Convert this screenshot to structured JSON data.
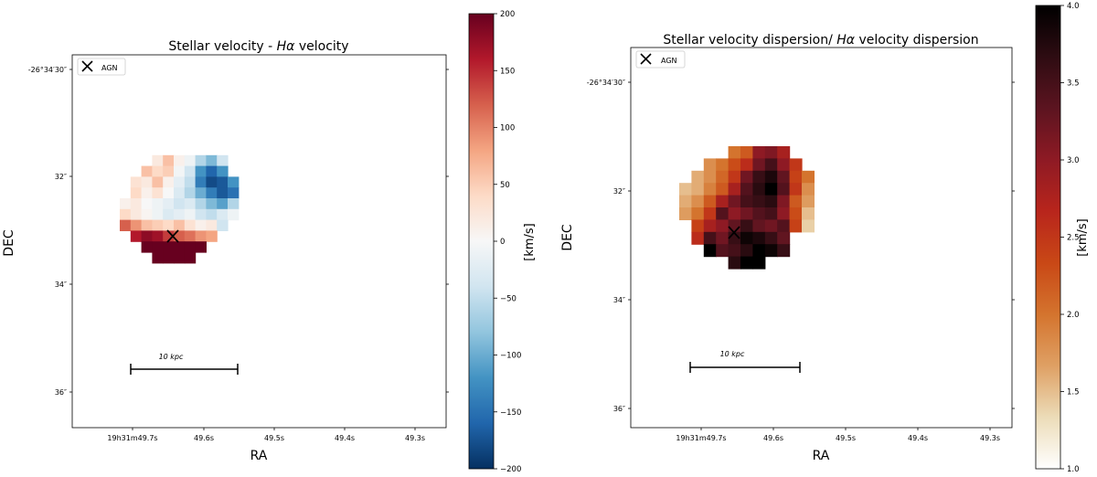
{
  "chart_data": [
    {
      "type": "heatmap",
      "title": "Stellar velocity - Hα velocity",
      "title_prefix": "Stellar velocity - ",
      "title_italic": "Hα",
      "title_suffix": " velocity",
      "xlabel": "RA",
      "ylabel": "DEC",
      "x_ticks": [
        "19h31m49.7s",
        "49.6s",
        "49.5s",
        "49.4s",
        "49.3s"
      ],
      "y_ticks": [
        "-26°34′30″",
        "32″",
        "34″",
        "36″"
      ],
      "legend": {
        "label": "AGN",
        "marker": "x-marker"
      },
      "agn_position": {
        "ra": "19h31m49.65s",
        "dec": "-26°34′33.1″"
      },
      "scalebar_label": "10 kpc",
      "colorbar": {
        "label": "[km/s]",
        "range": [
          -200,
          200
        ],
        "ticks": [
          200,
          150,
          100,
          50,
          0,
          -50,
          -100,
          -150,
          -200
        ],
        "colormap": "RdBu_r",
        "colors": [
          "#053061",
          "#2166ac",
          "#4393c3",
          "#92c5de",
          "#d1e5f0",
          "#f7f7f7",
          "#fddbc7",
          "#f4a582",
          "#d6604d",
          "#b2182b",
          "#67001f"
        ]
      },
      "description_grid_rows": [
        [
          null,
          null,
          null,
          null,
          null,
          null,
          null,
          null,
          null,
          null,
          null,
          null,
          null
        ],
        [
          null,
          null,
          null,
          20,
          60,
          10,
          -10,
          -60,
          -90,
          -40,
          null,
          null,
          null
        ],
        [
          null,
          null,
          60,
          40,
          50,
          -5,
          -40,
          -120,
          -160,
          -120,
          null,
          null,
          null
        ],
        [
          null,
          30,
          20,
          60,
          10,
          -20,
          -50,
          -140,
          -180,
          -170,
          -120,
          null,
          null
        ],
        [
          null,
          40,
          10,
          30,
          0,
          -30,
          -60,
          -100,
          -140,
          -170,
          -150,
          null,
          null
        ],
        [
          10,
          20,
          0,
          -10,
          -20,
          -40,
          -30,
          -60,
          -90,
          -110,
          -60,
          null,
          null
        ],
        [
          40,
          20,
          5,
          -10,
          -30,
          -20,
          -10,
          -40,
          -50,
          -30,
          -10,
          null,
          null
        ],
        [
          120,
          90,
          60,
          50,
          40,
          60,
          30,
          10,
          20,
          -40,
          null,
          null,
          null
        ],
        [
          null,
          160,
          180,
          170,
          140,
          120,
          110,
          90,
          80,
          null,
          null,
          null,
          null
        ],
        [
          null,
          null,
          200,
          200,
          200,
          200,
          200,
          200,
          null,
          null,
          null,
          null,
          null
        ],
        [
          null,
          null,
          null,
          200,
          200,
          200,
          200,
          null,
          null,
          null,
          null,
          null,
          null
        ]
      ]
    },
    {
      "type": "heatmap",
      "title": "Stellar velocity dispersion/ Hα velocity dispersion",
      "title_prefix": "Stellar velocity dispersion/ ",
      "title_italic": "Hα",
      "title_suffix": " velocity dispersion",
      "xlabel": "RA",
      "ylabel": "DEC",
      "x_ticks": [
        "19h31m49.7s",
        "49.6s",
        "49.5s",
        "49.4s",
        "49.3s"
      ],
      "y_ticks": [
        "-26°34′30″",
        "32″",
        "34″",
        "36″"
      ],
      "legend": {
        "label": "AGN",
        "marker": "x-marker"
      },
      "agn_position": {
        "ra": "19h31m49.66s",
        "dec": "-26°34′32.8″"
      },
      "scalebar_label": "10 kpc",
      "colorbar": {
        "label": "[km/s]",
        "range": [
          1.0,
          4.0
        ],
        "ticks": [
          4.0,
          3.5,
          3.0,
          2.5,
          2.0,
          1.5,
          1.0
        ],
        "colormap": "gist_heat_r",
        "colors": [
          "#ffffff",
          "#ecdcb8",
          "#dfa064",
          "#d4742e",
          "#c94816",
          "#b8251c",
          "#8e1a24",
          "#5c1420",
          "#2e0c12",
          "#000000"
        ]
      },
      "description_grid_rows": [
        [
          null,
          null,
          null,
          null,
          2.0,
          2.2,
          3.0,
          3.1,
          2.8,
          null,
          null,
          null
        ],
        [
          null,
          null,
          1.8,
          2.0,
          2.3,
          2.6,
          3.2,
          3.5,
          3.0,
          2.5,
          null,
          null
        ],
        [
          null,
          1.6,
          1.8,
          2.1,
          2.5,
          3.2,
          3.6,
          3.8,
          3.3,
          2.4,
          2.0,
          null
        ],
        [
          1.5,
          1.6,
          1.9,
          2.2,
          2.8,
          3.4,
          3.7,
          4.0,
          3.4,
          2.5,
          1.8,
          null
        ],
        [
          1.6,
          1.8,
          2.2,
          2.8,
          3.2,
          3.5,
          3.6,
          3.7,
          3.1,
          2.2,
          1.7,
          null
        ],
        [
          1.7,
          2.0,
          2.5,
          3.4,
          3.0,
          3.2,
          3.4,
          3.5,
          3.0,
          2.3,
          1.5,
          null
        ],
        [
          null,
          2.4,
          2.8,
          3.0,
          3.3,
          3.6,
          3.3,
          3.2,
          3.4,
          2.4,
          1.4,
          null
        ],
        [
          null,
          2.6,
          3.5,
          3.2,
          3.6,
          3.9,
          3.8,
          3.6,
          3.3,
          null,
          null,
          null
        ],
        [
          null,
          null,
          4.0,
          3.4,
          3.5,
          3.7,
          4.0,
          3.9,
          3.6,
          null,
          null,
          null
        ],
        [
          null,
          null,
          null,
          null,
          3.7,
          4.0,
          4.0,
          null,
          null,
          null,
          null,
          null
        ]
      ]
    }
  ]
}
